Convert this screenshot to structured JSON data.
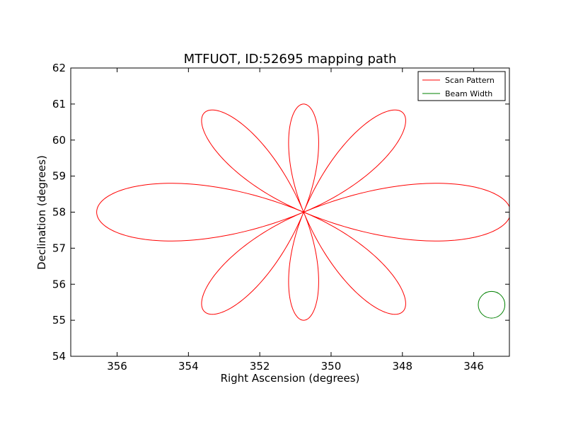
{
  "chart_data": {
    "type": "line",
    "title": "MTFUOT, ID:52695 mapping path",
    "xlabel": "Right Ascension (degrees)",
    "ylabel": "Declination (degrees)",
    "xlim": [
      357.3,
      345.0
    ],
    "ylim": [
      54,
      62
    ],
    "xticks": [
      356,
      354,
      352,
      350,
      348,
      346
    ],
    "yticks": [
      54,
      55,
      56,
      57,
      58,
      59,
      60,
      61,
      62
    ],
    "xtick_labels": [
      "356",
      "354",
      "352",
      "350",
      "348",
      "346"
    ],
    "ytick_labels": [
      "54",
      "55",
      "56",
      "57",
      "58",
      "59",
      "60",
      "61",
      "62"
    ],
    "grid": false,
    "legend_position": "top-right",
    "series": [
      {
        "name": "Scan Pattern",
        "color": "#ff0000",
        "kind": "rose-petal-scan",
        "center": [
          350.77,
          58.0
        ],
        "petal_angles_deg": [
          0,
          45,
          90,
          135,
          180,
          225,
          270,
          315
        ],
        "petal_lengths_deg": [
          5.75,
          3.9,
          3.0,
          3.9,
          5.75,
          3.9,
          3.0,
          3.9
        ]
      },
      {
        "name": "Beam Width",
        "color": "#008000",
        "kind": "circle",
        "center": [
          345.5,
          55.43
        ],
        "radius_y": 0.37
      }
    ]
  }
}
